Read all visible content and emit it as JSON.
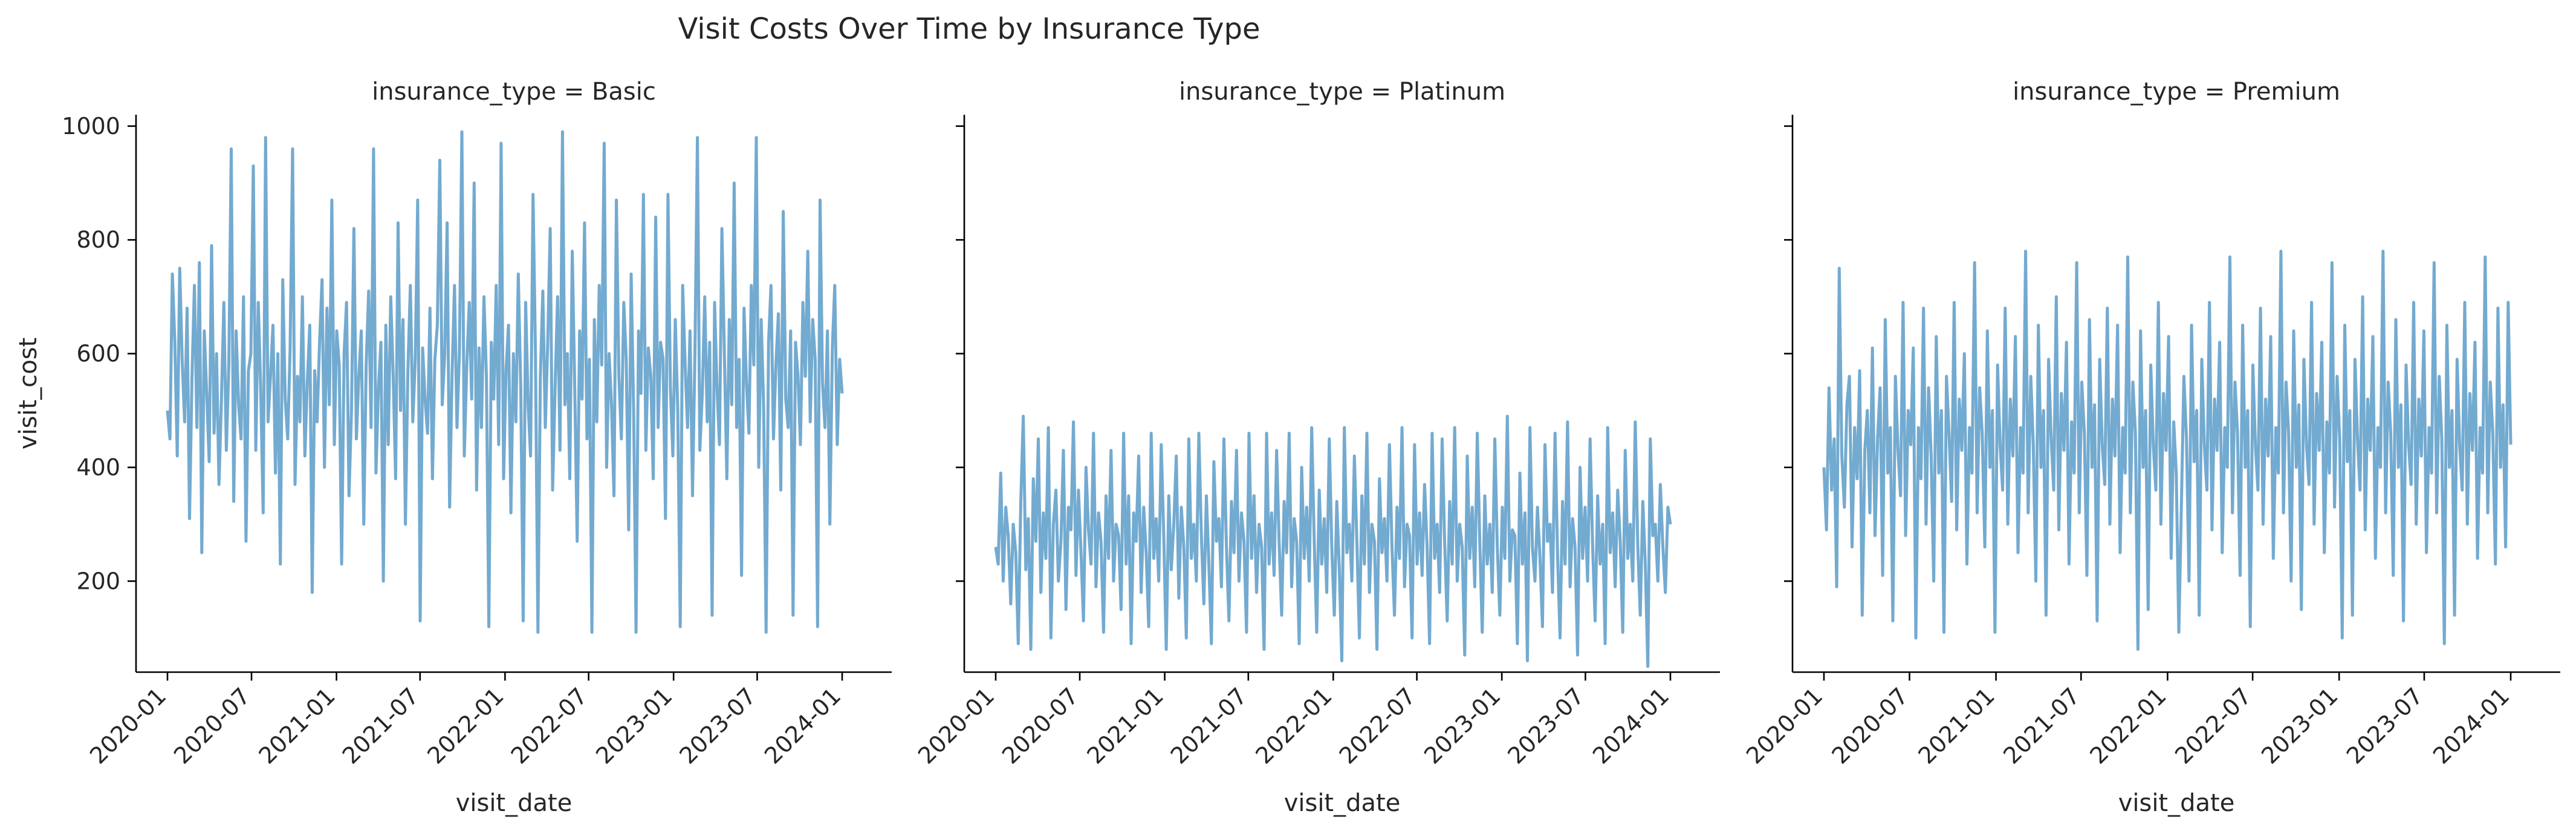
{
  "chart_data": {
    "type": "line",
    "title": "Visit Costs Over Time by Insurance Type",
    "xlabel": "visit_date",
    "ylabel": "visit_cost",
    "xlim": [
      "2020-01-01",
      "2024-01-01"
    ],
    "ylim": [
      40,
      1020
    ],
    "x_ticks": [
      "2020-01",
      "2020-07",
      "2021-01",
      "2021-07",
      "2022-01",
      "2022-07",
      "2023-01",
      "2023-07",
      "2024-01"
    ],
    "y_ticks": [
      200,
      400,
      600,
      800,
      1000
    ],
    "grid": false,
    "line_color": "#5b9bc8",
    "panels": [
      {
        "title": "insurance_type = Basic",
        "series": {
          "x_start": "2020-01-01",
          "x_end": "2024-01-01",
          "values": [
            500,
            450,
            740,
            620,
            420,
            750,
            590,
            480,
            680,
            310,
            560,
            720,
            470,
            760,
            250,
            640,
            530,
            410,
            790,
            460,
            600,
            370,
            520,
            690,
            430,
            580,
            960,
            340,
            640,
            510,
            450,
            700,
            270,
            570,
            600,
            930,
            430,
            690,
            540,
            320,
            980,
            480,
            560,
            650,
            390,
            600,
            230,
            730,
            520,
            450,
            610,
            960,
            370,
            560,
            480,
            700,
            420,
            550,
            650,
            180,
            570,
            480,
            620,
            730,
            400,
            680,
            510,
            870,
            440,
            640,
            580,
            230,
            600,
            690,
            350,
            500,
            820,
            450,
            560,
            640,
            300,
            580,
            710,
            470,
            960,
            390,
            540,
            620,
            200,
            650,
            440,
            700,
            560,
            380,
            830,
            500,
            660,
            300,
            570,
            720,
            480,
            590,
            870,
            130,
            610,
            520,
            460,
            680,
            380,
            590,
            650,
            940,
            510,
            600,
            830,
            330,
            560,
            720,
            470,
            600,
            990,
            420,
            580,
            690,
            520,
            900,
            360,
            610,
            470,
            700,
            560,
            120,
            620,
            520,
            720,
            440,
            970,
            380,
            570,
            650,
            320,
            600,
            480,
            740,
            540,
            130,
            690,
            510,
            420,
            880,
            600,
            110,
            560,
            710,
            470,
            620,
            820,
            360,
            540,
            700,
            430,
            990,
            510,
            600,
            380,
            780,
            540,
            270,
            640,
            520,
            830,
            450,
            590,
            110,
            660,
            480,
            720,
            580,
            970,
            400,
            600,
            510,
            350,
            870,
            560,
            450,
            690,
            590,
            290,
            740,
            500,
            110,
            640,
            530,
            880,
            430,
            610,
            560,
            380,
            840,
            470,
            620,
            590,
            310,
            880,
            540,
            420,
            660,
            500,
            120,
            720,
            580,
            470,
            640,
            350,
            600,
            980,
            430,
            530,
            700,
            480,
            620,
            140,
            690,
            540,
            440,
            820,
            600,
            380,
            660,
            510,
            900,
            470,
            590,
            210,
            680,
            550,
            460,
            720,
            580,
            980,
            400,
            660,
            510,
            110,
            620,
            720,
            450,
            580,
            670,
            360,
            850,
            520,
            470,
            640,
            140,
            620,
            560,
            440,
            690,
            560,
            780,
            480,
            660,
            590,
            120,
            870,
            550,
            470,
            640,
            300,
            610,
            720,
            440,
            590,
            530
          ]
        }
      },
      {
        "title": "insurance_type = Platinum",
        "series": {
          "x_start": "2020-01-01",
          "x_end": "2024-01-01",
          "values": [
            260,
            230,
            390,
            200,
            330,
            280,
            160,
            300,
            250,
            90,
            340,
            490,
            220,
            310,
            80,
            380,
            270,
            450,
            180,
            320,
            240,
            470,
            100,
            300,
            360,
            200,
            270,
            430,
            150,
            330,
            290,
            480,
            210,
            360,
            250,
            130,
            400,
            290,
            230,
            460,
            190,
            320,
            270,
            110,
            350,
            240,
            430,
            200,
            300,
            280,
            150,
            460,
            230,
            350,
            90,
            320,
            270,
            420,
            180,
            330,
            250,
            120,
            460,
            240,
            310,
            200,
            440,
            280,
            80,
            350,
            220,
            300,
            420,
            170,
            330,
            260,
            100,
            450,
            240,
            300,
            200,
            460,
            280,
            160,
            350,
            230,
            90,
            410,
            270,
            310,
            190,
            450,
            260,
            130,
            340,
            250,
            430,
            200,
            320,
            270,
            110,
            460,
            240,
            350,
            180,
            300,
            260,
            80,
            460,
            230,
            320,
            210,
            430,
            270,
            140,
            340,
            250,
            460,
            190,
            310,
            270,
            90,
            400,
            240,
            330,
            200,
            470,
            270,
            110,
            360,
            230,
            310,
            180,
            450,
            260,
            140,
            340,
            220,
            60,
            470,
            250,
            300,
            200,
            420,
            270,
            100,
            350,
            230,
            460,
            180,
            300,
            270,
            80,
            380,
            250,
            310,
            200,
            440,
            260,
            140,
            330,
            240,
            470,
            190,
            300,
            280,
            100,
            440,
            230,
            320,
            210,
            370,
            260,
            90,
            460,
            240,
            300,
            180,
            450,
            270,
            130,
            340,
            230,
            470,
            200,
            300,
            260,
            70,
            420,
            240,
            330,
            190,
            460,
            270,
            110,
            350,
            230,
            300,
            180,
            450,
            260,
            140,
            330,
            240,
            490,
            200,
            290,
            280,
            90,
            390,
            230,
            320,
            60,
            470,
            260,
            200,
            330,
            240,
            120,
            440,
            270,
            300,
            180,
            460,
            250,
            100,
            340,
            230,
            480,
            190,
            310,
            260,
            70,
            400,
            240,
            330,
            200,
            450,
            260,
            130,
            350,
            230,
            300,
            90,
            470,
            250,
            320,
            190,
            360,
            270,
            110,
            430,
            240,
            300,
            200,
            480,
            260,
            140,
            340,
            230,
            50,
            450,
            280,
            300,
            200,
            370,
            260,
            180,
            330,
            300
          ]
        }
      },
      {
        "title": "insurance_type = Premium",
        "series": {
          "x_start": "2020-01-01",
          "x_end": "2024-01-01",
          "values": [
            400,
            290,
            540,
            360,
            450,
            190,
            750,
            420,
            330,
            510,
            560,
            260,
            470,
            380,
            570,
            140,
            430,
            500,
            320,
            610,
            280,
            450,
            540,
            210,
            660,
            390,
            470,
            130,
            560,
            430,
            350,
            690,
            280,
            500,
            440,
            610,
            100,
            470,
            380,
            680,
            300,
            540,
            420,
            200,
            630,
            390,
            500,
            110,
            560,
            460,
            340,
            690,
            290,
            520,
            430,
            600,
            230,
            470,
            390,
            760,
            320,
            540,
            460,
            260,
            640,
            400,
            500,
            110,
            580,
            440,
            360,
            680,
            300,
            520,
            420,
            630,
            250,
            470,
            390,
            780,
            320,
            560,
            440,
            200,
            650,
            400,
            500,
            140,
            590,
            450,
            360,
            700,
            290,
            530,
            430,
            620,
            230,
            480,
            390,
            760,
            320,
            550,
            460,
            210,
            660,
            400,
            510,
            130,
            590,
            440,
            370,
            680,
            300,
            520,
            420,
            650,
            250,
            470,
            390,
            770,
            320,
            550,
            460,
            80,
            640,
            400,
            500,
            150,
            580,
            440,
            360,
            690,
            300,
            530,
            430,
            630,
            240,
            480,
            390,
            110,
            330,
            560,
            450,
            200,
            650,
            410,
            500,
            140,
            590,
            440,
            360,
            690,
            290,
            520,
            430,
            620,
            250,
            470,
            400,
            770,
            320,
            550,
            460,
            210,
            650,
            400,
            500,
            120,
            580,
            440,
            360,
            680,
            300,
            520,
            420,
            630,
            240,
            470,
            390,
            780,
            320,
            550,
            460,
            200,
            640,
            400,
            510,
            150,
            590,
            440,
            370,
            690,
            300,
            530,
            430,
            620,
            250,
            480,
            390,
            760,
            330,
            560,
            450,
            100,
            650,
            410,
            500,
            140,
            590,
            450,
            360,
            700,
            290,
            520,
            430,
            630,
            240,
            470,
            400,
            780,
            320,
            550,
            460,
            210,
            660,
            400,
            510,
            130,
            580,
            440,
            370,
            690,
            300,
            520,
            420,
            640,
            250,
            470,
            390,
            760,
            320,
            560,
            450,
            90,
            650,
            400,
            500,
            140,
            590,
            440,
            360,
            690,
            300,
            530,
            430,
            620,
            240,
            470,
            390,
            770,
            320,
            550,
            460,
            230,
            680,
            400,
            510,
            260,
            690,
            440
          ]
        }
      }
    ]
  }
}
